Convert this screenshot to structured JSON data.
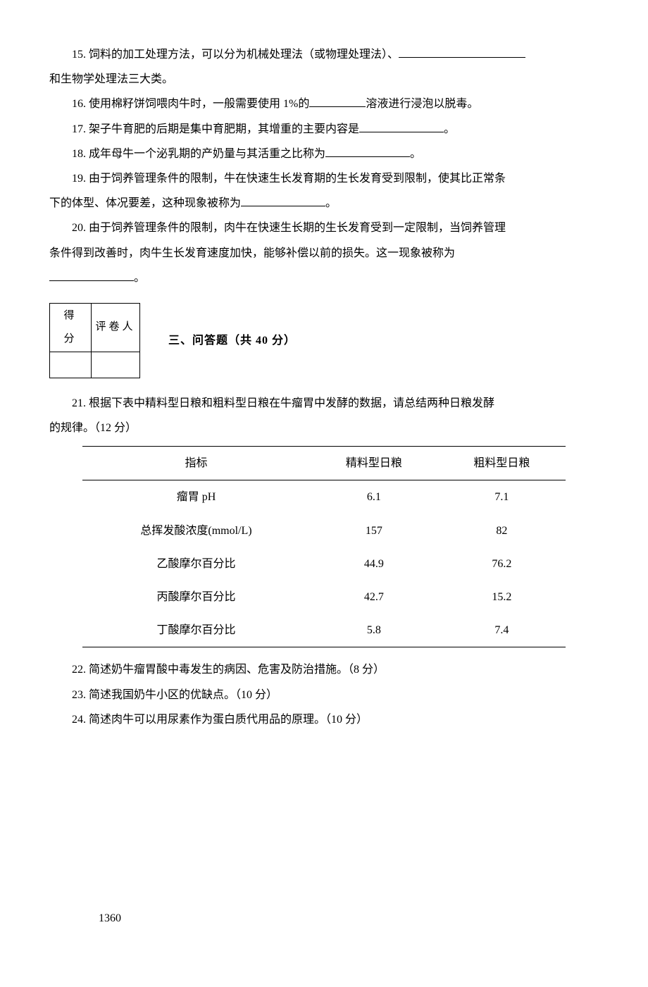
{
  "fill": {
    "q15": {
      "text_a": "15. 饲料的加工处理方法，可以分为机械处理法（或物理处理法）、",
      "text_b": "和生物学处理法三大类。"
    },
    "q16": {
      "text_a": "16. 使用棉籽饼饲喂肉牛时，一般需要使用 1%的",
      "text_b": "溶液进行浸泡以脱毒。"
    },
    "q17": {
      "text_a": "17. 架子牛育肥的后期是集中育肥期，其增重的主要内容是",
      "text_b": "。"
    },
    "q18": {
      "text_a": "18. 成年母牛一个泌乳期的产奶量与其活重之比称为",
      "text_b": "。"
    },
    "q19": {
      "text_a": "19. 由于饲养管理条件的限制，牛在快速生长发育期的生长发育受到限制，使其比正常条",
      "text_b": "下的体型、体况要差，这种现象被称为",
      "text_c": "。"
    },
    "q20": {
      "text_a": "20. 由于饲养管理条件的限制，肉牛在快速生长期的生长发育受到一定限制，当饲养管理",
      "text_b": "条件得到改善时，肉牛生长发育速度加快，能够补偿以前的损失。这一现象被称为",
      "text_c": "。"
    }
  },
  "score_box": {
    "col1": "得　分",
    "col2": "评卷人"
  },
  "section3": {
    "title": "三、问答题（共 40 分）"
  },
  "qa": {
    "q21_intro": "21. 根据下表中精料型日粮和粗料型日粮在牛瘤胃中发酵的数据，请总结两种日粮发酵",
    "q21_intro2": "的规律。（12 分）",
    "q22": "22. 简述奶牛瘤胃酸中毒发生的病因、危害及防治措施。（8 分）",
    "q23": "23. 简述我国奶牛小区的优缺点。（10 分）",
    "q24": "24. 简述肉牛可以用尿素作为蛋白质代用品的原理。（10 分）"
  },
  "table": {
    "columns": [
      "指标",
      "精料型日粮",
      "粗料型日粮"
    ],
    "rows": [
      [
        "瘤胃 pH",
        "6.1",
        "7.1"
      ],
      [
        "总挥发酸浓度(mmol/L)",
        "157",
        "82"
      ],
      [
        "乙酸摩尔百分比",
        "44.9",
        "76.2"
      ],
      [
        "丙酸摩尔百分比",
        "42.7",
        "15.2"
      ],
      [
        "丁酸摩尔百分比",
        "5.8",
        "7.4"
      ]
    ],
    "col_widths": [
      "40%",
      "30%",
      "30%"
    ],
    "header_fontsize": 16,
    "cell_fontsize": 16,
    "border_color": "#000000"
  },
  "page_number": "1360",
  "colors": {
    "text": "#000000",
    "background": "#ffffff"
  },
  "typography": {
    "base_fontsize": 16,
    "line_height": 2.2,
    "font_family": "SimSun"
  }
}
